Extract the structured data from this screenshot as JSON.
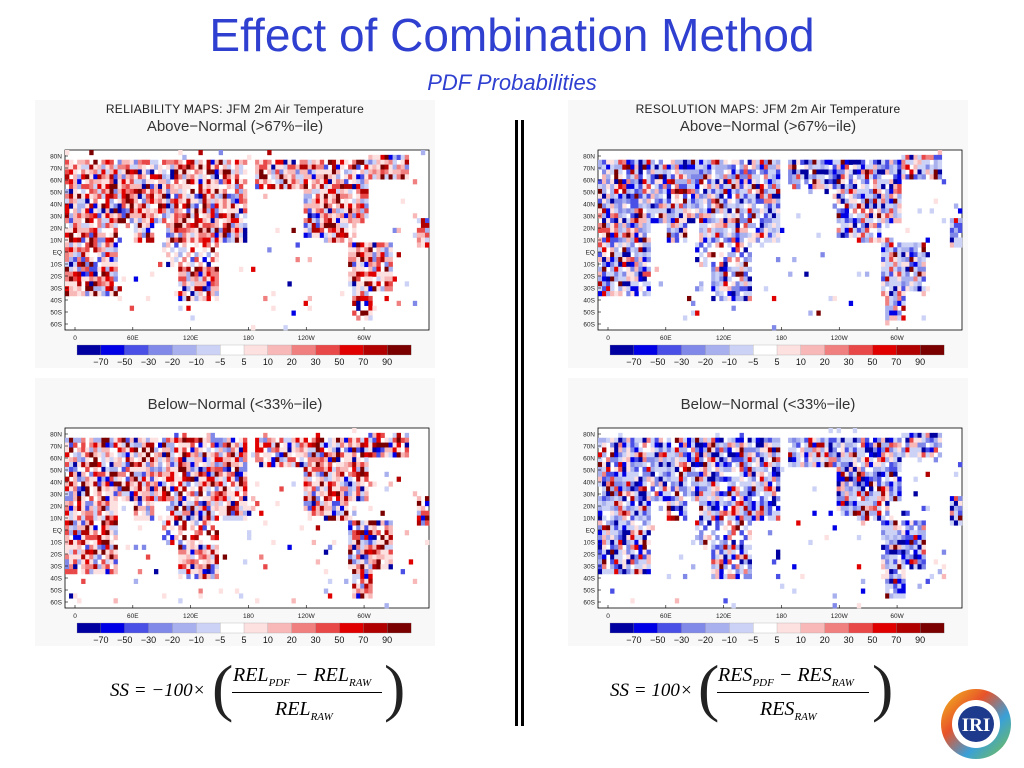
{
  "slide": {
    "title": "Effect of Combination Method",
    "subtitle": "PDF Probabilities"
  },
  "panels": [
    {
      "id": "rel-above",
      "header": "RELIABILITY MAPS: JFM 2m Air Temperature",
      "subtitle": "Above−Normal (>67%−ile)"
    },
    {
      "id": "res-above",
      "header": "RESOLUTION MAPS: JFM 2m Air Temperature",
      "subtitle": "Above−Normal (>67%−ile)"
    },
    {
      "id": "rel-below",
      "header": "",
      "subtitle": "Below−Normal (<33%−ile)"
    },
    {
      "id": "res-below",
      "header": "",
      "subtitle": "Below−Normal (<33%−ile)"
    }
  ],
  "map_axes": {
    "lat_labels": [
      "80N",
      "70N",
      "60N",
      "50N",
      "40N",
      "30N",
      "20N",
      "10N",
      "EQ",
      "10S",
      "20S",
      "30S",
      "40S",
      "50S",
      "60S"
    ],
    "lon_labels": [
      "0",
      "60E",
      "120E",
      "180",
      "120W",
      "60W"
    ]
  },
  "colorbar": {
    "labels": [
      "−70",
      "−50",
      "−30",
      "−20",
      "−10",
      "−5",
      "5",
      "10",
      "20",
      "30",
      "50",
      "70",
      "90"
    ],
    "colors": [
      "#0000a0",
      "#0000e6",
      "#4a50e6",
      "#8088e8",
      "#a8b0ee",
      "#ccd2f6",
      "#ffffff",
      "#fde0e0",
      "#f8b8b8",
      "#f08080",
      "#e84848",
      "#e00000",
      "#b00000",
      "#7a0000"
    ]
  },
  "formulas": {
    "left": {
      "lhs": "SS = −100×",
      "num_a": "REL",
      "num_a_sub": "PDF",
      "minus": " − ",
      "num_b": "REL",
      "num_b_sub": "RAW",
      "den": "REL",
      "den_sub": "RAW"
    },
    "right": {
      "lhs": "SS = 100×",
      "num_a": "RES",
      "num_a_sub": "PDF",
      "minus": " − ",
      "num_b": "RES",
      "num_b_sub": "RAW",
      "den": "RES",
      "den_sub": "RAW"
    }
  },
  "logo": {
    "text": "IRI"
  }
}
